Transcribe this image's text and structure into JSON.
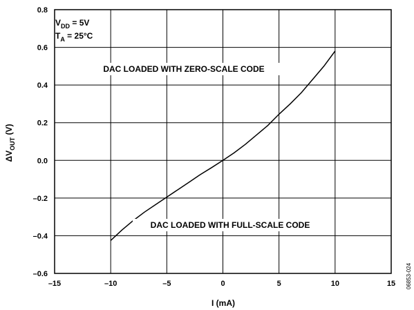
{
  "chart_data": {
    "type": "line",
    "xlabel_main": "I (mA)",
    "ylabel": {
      "prefix": "ΔV",
      "sub": "OUT",
      "suffix": " (V)"
    },
    "xlim": [
      -15,
      15
    ],
    "ylim": [
      -0.6,
      0.8
    ],
    "x_ticks": [
      -15,
      -10,
      -5,
      0,
      5,
      10,
      15
    ],
    "x_tick_labels": [
      "–15",
      "–10",
      "–5",
      "0",
      "5",
      "10",
      "15"
    ],
    "y_ticks": [
      -0.6,
      -0.4,
      -0.2,
      0.0,
      0.2,
      0.4,
      0.6,
      0.8
    ],
    "y_tick_labels": [
      "–0.6",
      "–0.4",
      "–0.2",
      "0.0",
      "0.2",
      "0.4",
      "0.6",
      "0.8"
    ],
    "grid": true,
    "series": [
      {
        "x": [
          -10,
          -9,
          -8,
          -7,
          -6,
          -5,
          -4,
          -3,
          -2,
          -1,
          0,
          1,
          2,
          3,
          4,
          5,
          6,
          7,
          8,
          9,
          10
        ],
        "y": [
          -0.425,
          -0.37,
          -0.32,
          -0.275,
          -0.235,
          -0.195,
          -0.155,
          -0.115,
          -0.075,
          -0.038,
          0.0,
          0.04,
          0.085,
          0.135,
          0.185,
          0.245,
          0.3,
          0.36,
          0.43,
          0.5,
          0.58
        ]
      }
    ],
    "annotations": {
      "vdd": {
        "main": "V",
        "sub": "DD",
        "rest": " = 5V"
      },
      "ta": {
        "main": "T",
        "sub": "A",
        "rest": " = 25°C"
      },
      "zero_scale": "DAC LOADED WITH ZERO-SCALE CODE",
      "full_scale": "DAC LOADED WITH FULL-SCALE CODE"
    },
    "figure_id": "06853-024"
  }
}
